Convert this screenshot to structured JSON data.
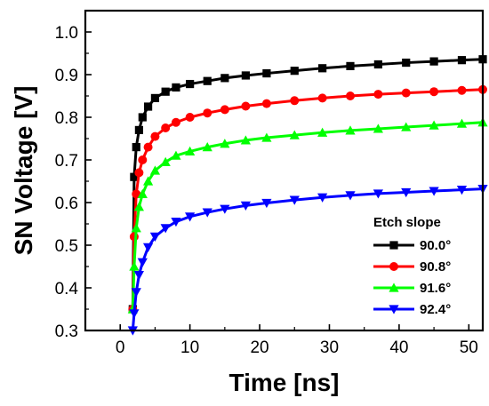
{
  "chart_data": {
    "type": "line",
    "title": "",
    "xlabel": "Time [ns]",
    "ylabel": "SN Voltage [V]",
    "xlim": [
      -5,
      52
    ],
    "ylim": [
      0.3,
      1.05
    ],
    "xticks": [
      0,
      10,
      20,
      30,
      40,
      50
    ],
    "yticks": [
      0.3,
      0.4,
      0.5,
      0.6,
      0.7,
      0.8,
      0.9,
      1.0
    ],
    "xtick_labels": [
      "0",
      "10",
      "20",
      "30",
      "40",
      "50"
    ],
    "ytick_labels": [
      "0.3",
      "0.4",
      "0.5",
      "0.6",
      "0.7",
      "0.8",
      "0.9",
      "1.0"
    ],
    "grid": false,
    "legend": {
      "title": "Etch slope",
      "position": "bottom-right"
    },
    "series": [
      {
        "name": "90.0°",
        "color": "#000000",
        "marker": "square",
        "x": [
          1.8,
          2.0,
          2.3,
          2.7,
          3.2,
          4.0,
          5.0,
          6.5,
          8.0,
          10.0,
          12.5,
          15.0,
          18.0,
          21.0,
          25.0,
          29.0,
          33.0,
          37.0,
          41.0,
          45.0,
          49.0,
          52.0
        ],
        "y": [
          0.35,
          0.66,
          0.73,
          0.77,
          0.8,
          0.825,
          0.845,
          0.86,
          0.87,
          0.878,
          0.885,
          0.892,
          0.898,
          0.903,
          0.909,
          0.915,
          0.92,
          0.924,
          0.928,
          0.931,
          0.934,
          0.936
        ]
      },
      {
        "name": "90.8°",
        "color": "#ff0000",
        "marker": "circle",
        "x": [
          1.8,
          2.0,
          2.3,
          2.7,
          3.2,
          4.0,
          5.0,
          6.5,
          8.0,
          10.0,
          12.5,
          15.0,
          18.0,
          21.0,
          25.0,
          29.0,
          33.0,
          37.0,
          41.0,
          45.0,
          49.0,
          52.0
        ],
        "y": [
          0.35,
          0.52,
          0.62,
          0.67,
          0.7,
          0.73,
          0.755,
          0.775,
          0.788,
          0.8,
          0.81,
          0.818,
          0.826,
          0.832,
          0.839,
          0.845,
          0.85,
          0.854,
          0.857,
          0.86,
          0.863,
          0.865
        ]
      },
      {
        "name": "91.6°",
        "color": "#00ff00",
        "marker": "triangle-up",
        "x": [
          1.8,
          2.0,
          2.3,
          2.7,
          3.2,
          4.0,
          5.0,
          6.5,
          8.0,
          10.0,
          12.5,
          15.0,
          18.0,
          21.0,
          25.0,
          29.0,
          33.0,
          37.0,
          41.0,
          45.0,
          49.0,
          52.0
        ],
        "y": [
          0.35,
          0.45,
          0.54,
          0.59,
          0.62,
          0.65,
          0.675,
          0.695,
          0.71,
          0.72,
          0.73,
          0.738,
          0.746,
          0.752,
          0.758,
          0.764,
          0.769,
          0.773,
          0.777,
          0.781,
          0.785,
          0.788
        ]
      },
      {
        "name": "92.4°",
        "color": "#0000ff",
        "marker": "triangle-down",
        "x": [
          1.8,
          2.0,
          2.3,
          2.7,
          3.2,
          4.0,
          5.0,
          6.5,
          8.0,
          10.0,
          12.5,
          15.0,
          18.0,
          21.0,
          25.0,
          29.0,
          33.0,
          37.0,
          41.0,
          45.0,
          49.0,
          52.0
        ],
        "y": [
          0.3,
          0.34,
          0.39,
          0.43,
          0.46,
          0.495,
          0.52,
          0.54,
          0.555,
          0.567,
          0.577,
          0.585,
          0.593,
          0.599,
          0.606,
          0.612,
          0.617,
          0.621,
          0.624,
          0.627,
          0.63,
          0.632
        ]
      }
    ]
  }
}
